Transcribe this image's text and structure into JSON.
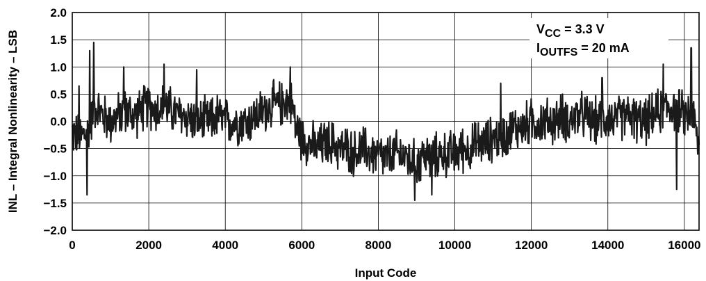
{
  "chart_data": {
    "type": "line",
    "title": "",
    "xlabel": "Input Code",
    "ylabel": "INL – Integral Nonlinearity – LSB",
    "xlim": [
      0,
      16384
    ],
    "ylim": [
      -2.0,
      2.0
    ],
    "x_ticks": [
      "0",
      "2000",
      "4000",
      "6000",
      "8000",
      "10000",
      "12000",
      "14000",
      "16000"
    ],
    "y_ticks": [
      "2.0",
      "1.5",
      "1.0",
      "0.5",
      "0.0",
      "−0.5",
      "−1.0",
      "−1.5",
      "−2.0"
    ],
    "grid": true,
    "annotations": [
      {
        "main": "V",
        "sub": "CC",
        "rest": " = 3.3 V"
      },
      {
        "main": "I",
        "sub": "OUTFS",
        "rest": " = 20 mA"
      }
    ],
    "series": [
      {
        "color": "#1a1a1a",
        "x": [
          0,
          200,
          400,
          600,
          800,
          1000,
          1200,
          1400,
          1600,
          1800,
          2000,
          2200,
          2400,
          2600,
          2800,
          3000,
          3200,
          3400,
          3600,
          3800,
          4000,
          4200,
          4400,
          4600,
          4800,
          5000,
          5200,
          5400,
          5600,
          5750,
          5850,
          6000,
          6200,
          6400,
          6600,
          6800,
          7000,
          7200,
          7400,
          7600,
          7800,
          8000,
          8200,
          8400,
          8600,
          8800,
          9000,
          9200,
          9400,
          9600,
          9800,
          10000,
          10200,
          10400,
          10600,
          10800,
          11000,
          11200,
          11400,
          11600,
          11800,
          12000,
          12200,
          12400,
          12600,
          12800,
          13000,
          13200,
          13400,
          13600,
          13800,
          14000,
          14200,
          14400,
          14600,
          14800,
          15000,
          15200,
          15400,
          15600,
          15800,
          16000,
          16200,
          16383
        ],
        "values": [
          -0.2,
          -0.3,
          -0.2,
          0.3,
          0.1,
          0.0,
          0.1,
          0.2,
          0.1,
          0.2,
          0.3,
          0.2,
          0.3,
          0.2,
          0.1,
          0.1,
          0.0,
          0.0,
          0.0,
          0.1,
          0.0,
          0.0,
          0.0,
          0.0,
          0.1,
          0.2,
          0.3,
          0.3,
          0.4,
          0.3,
          -0.1,
          -0.3,
          -0.4,
          -0.5,
          -0.4,
          -0.4,
          -0.5,
          -0.5,
          -0.6,
          -0.5,
          -0.6,
          -0.6,
          -0.7,
          -0.6,
          -0.6,
          -0.7,
          -0.8,
          -0.6,
          -0.7,
          -0.6,
          -0.6,
          -0.6,
          -0.5,
          -0.5,
          -0.4,
          -0.4,
          -0.3,
          -0.3,
          -0.2,
          -0.1,
          -0.1,
          0.0,
          0.0,
          0.0,
          0.0,
          0.1,
          0.0,
          0.1,
          0.1,
          0.0,
          0.0,
          0.1,
          0.0,
          0.1,
          0.1,
          0.0,
          0.0,
          0.1,
          0.2,
          0.3,
          0.2,
          0.1,
          0.2,
          -0.5
        ],
        "noise_amplitude": 0.35,
        "peaks": [
          {
            "x": 180,
            "y": 0.65
          },
          {
            "x": 390,
            "y": -1.35
          },
          {
            "x": 460,
            "y": 1.3
          },
          {
            "x": 560,
            "y": 1.45
          },
          {
            "x": 1350,
            "y": 1.0
          },
          {
            "x": 2400,
            "y": 1.05
          },
          {
            "x": 3250,
            "y": 0.95
          },
          {
            "x": 5700,
            "y": 1.0
          },
          {
            "x": 8950,
            "y": -1.45
          },
          {
            "x": 9400,
            "y": -1.35
          },
          {
            "x": 11200,
            "y": 0.7
          },
          {
            "x": 13850,
            "y": 0.8
          },
          {
            "x": 15450,
            "y": 1.05
          },
          {
            "x": 15800,
            "y": -1.25
          },
          {
            "x": 16180,
            "y": 1.35
          }
        ]
      }
    ]
  }
}
